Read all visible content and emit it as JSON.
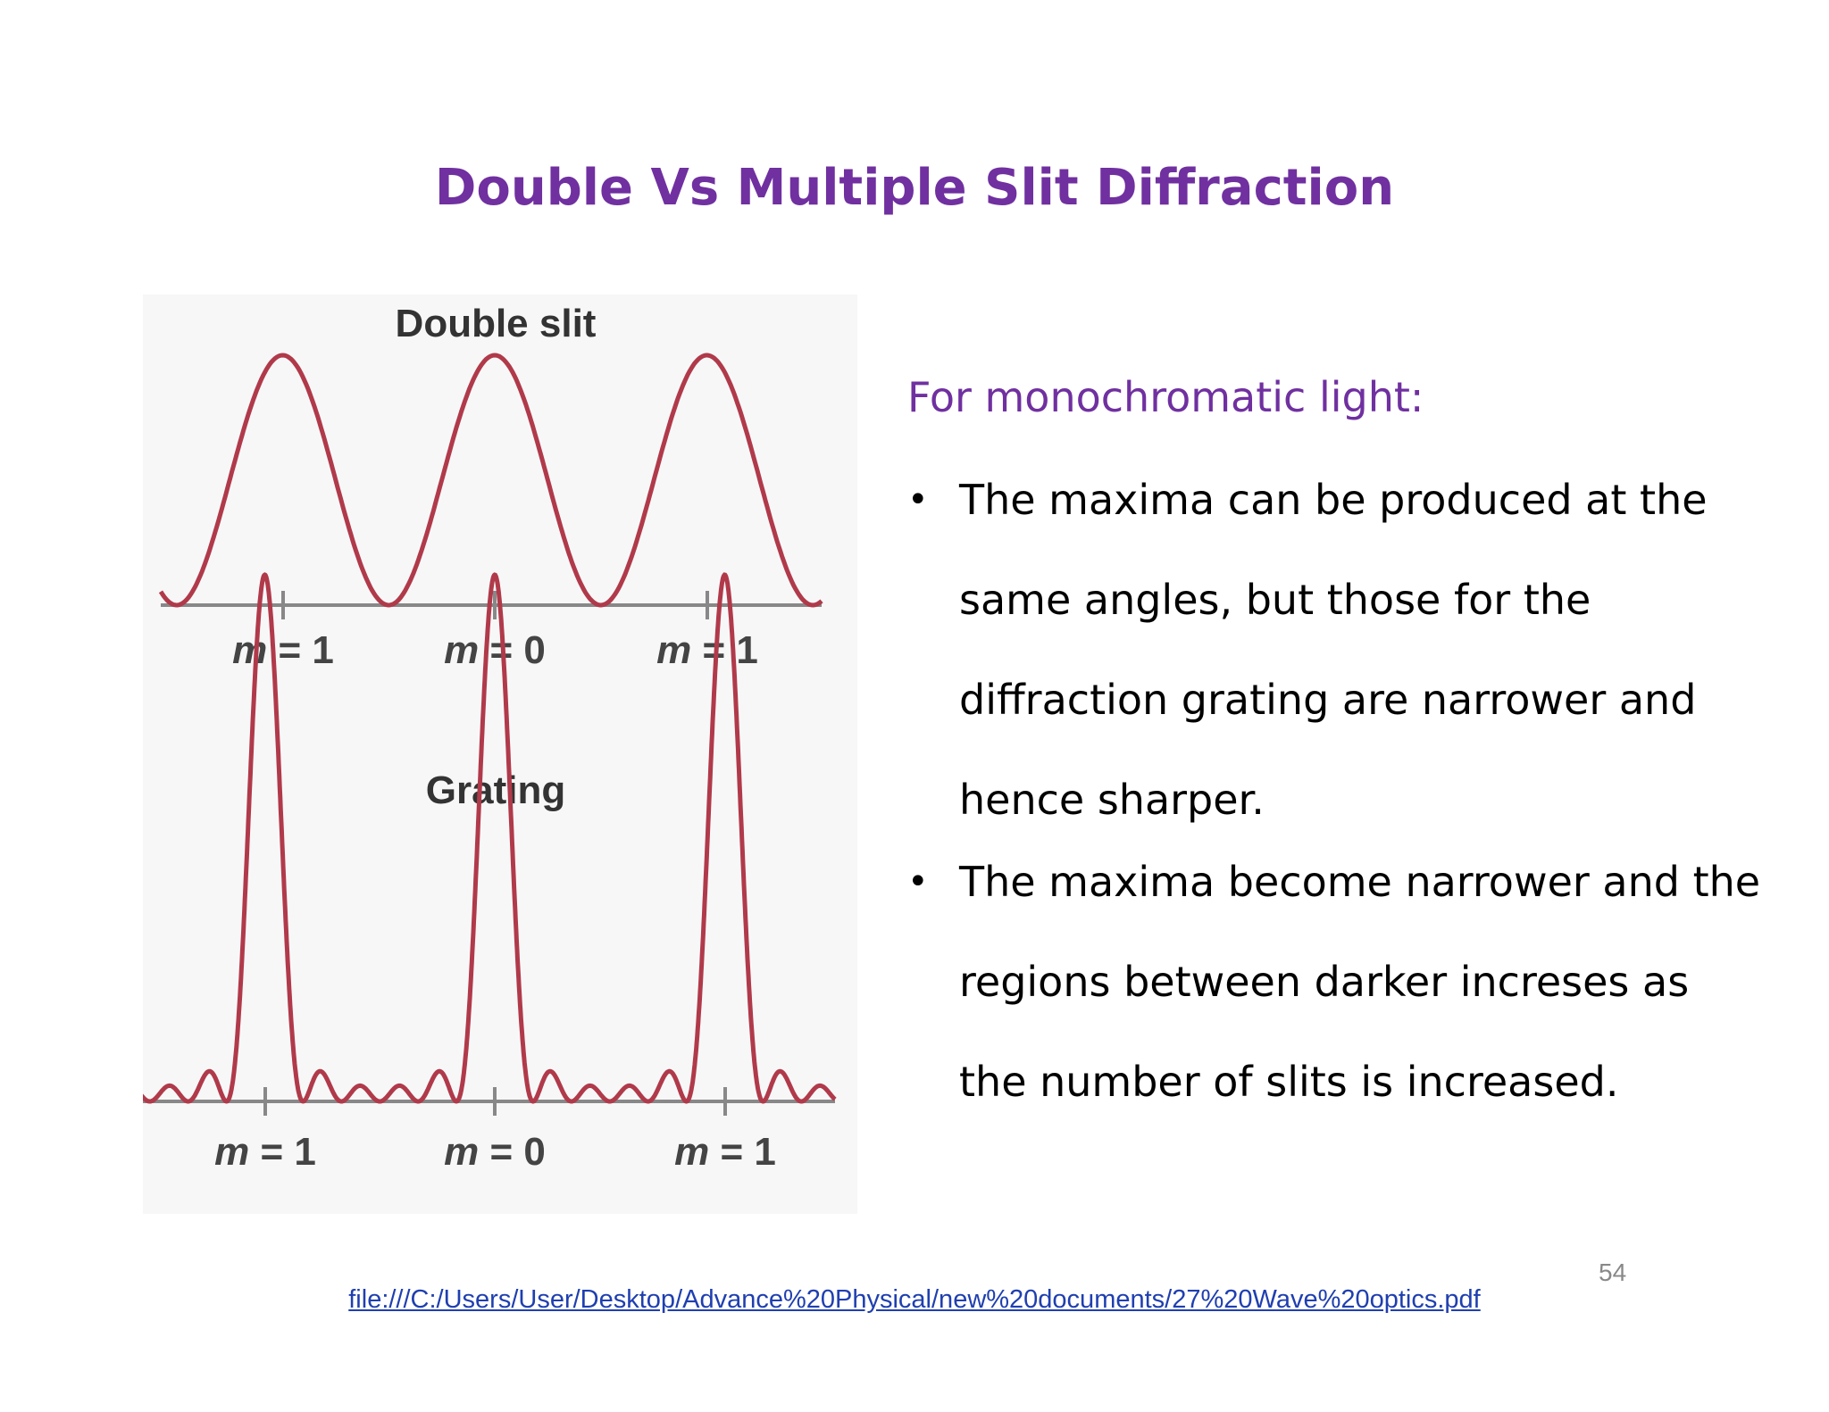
{
  "slide": {
    "title": "Double Vs Multiple Slit Diffraction",
    "page_number": "54",
    "source_link": "file:///C:/Users/User/Desktop/Advance%20Physical/new%20documents/27%20Wave%20optics.pdf"
  },
  "figure": {
    "top_plot": {
      "title": "Double slit",
      "labels": [
        {
          "m": "m",
          "eq": " = ",
          "n": "1"
        },
        {
          "m": "m",
          "eq": " = ",
          "n": "0"
        },
        {
          "m": "m",
          "eq": " = ",
          "n": "1"
        }
      ]
    },
    "bottom_plot": {
      "title": "Grating",
      "labels": [
        {
          "m": "m",
          "eq": " = ",
          "n": "1"
        },
        {
          "m": "m",
          "eq": " = ",
          "n": "0"
        },
        {
          "m": "m",
          "eq": " = ",
          "n": "1"
        }
      ]
    },
    "curve_color": "#b03a4a",
    "axis_color": "#888888"
  },
  "content": {
    "lead": "For monochromatic light:",
    "bullets": [
      {
        "lines": [
          "The maxima can be produced at the",
          "same angles, but those for the",
          "diffraction grating are narrower and",
          "hence sharper."
        ]
      },
      {
        "lines": [
          "The maxima become narrower and the",
          "regions between darker increses as",
          "the number of slits is increased."
        ]
      }
    ]
  }
}
